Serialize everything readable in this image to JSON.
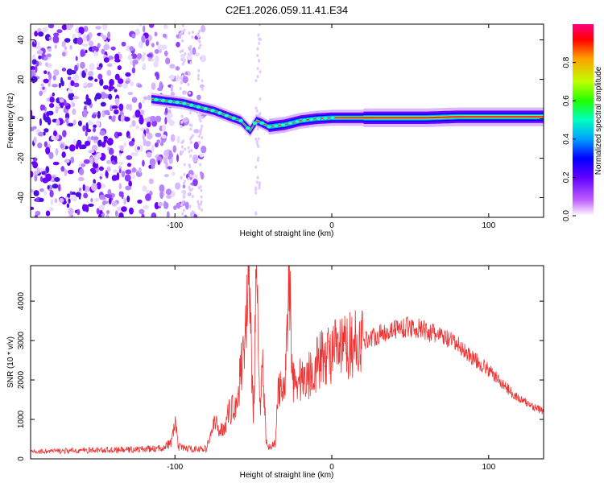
{
  "title": "C2E1.2026.059.11.41.E34",
  "chart_data": [
    {
      "type": "heatmap",
      "xlabel": "Height of straight line (km)",
      "ylabel": "Frequency (Hz)",
      "xlim": [
        -192,
        135
      ],
      "ylim": [
        -50,
        48
      ],
      "xticks": [
        -100,
        0,
        100
      ],
      "yticks": [
        -40,
        -20,
        0,
        20,
        40
      ],
      "xtick_labels": [
        "-100",
        "0",
        "100"
      ],
      "ytick_labels": [
        "-40",
        "-20",
        "0",
        "20",
        "40"
      ],
      "ridge": {
        "x": [
          -115,
          -105,
          -95,
          -85,
          -75,
          -65,
          -58,
          -52,
          -48,
          -45,
          -40,
          -30,
          -20,
          -10,
          0,
          10,
          20,
          40,
          60,
          80,
          100,
          120,
          135
        ],
        "y": [
          10,
          9,
          8,
          6,
          4,
          1,
          -1,
          -6,
          -1,
          -2,
          -4,
          -3,
          -1,
          0,
          0.5,
          0.5,
          0.5,
          0.5,
          0.5,
          1,
          1,
          1,
          1
        ]
      },
      "noise_region_x": [
        -192,
        -80
      ],
      "colorbar": {
        "label": "Normalized spectral amplitude",
        "range": [
          0,
          1
        ],
        "ticks": [
          0.0,
          0.2,
          0.4,
          0.6,
          0.8
        ],
        "tick_labels": [
          "0.0",
          "0.2",
          "0.4",
          "0.6",
          "0.8"
        ],
        "colors": [
          "#ffffff",
          "#c060ff",
          "#6000ff",
          "#0000ff",
          "#00a0ff",
          "#00ffc0",
          "#20ff00",
          "#c0ff00",
          "#ffa000",
          "#ff0000",
          "#ff0080"
        ]
      }
    },
    {
      "type": "line",
      "xlabel": "Height of straight line (km)",
      "ylabel": "SNR (10 * v/v)",
      "xlim": [
        -192,
        135
      ],
      "ylim": [
        0,
        4900
      ],
      "xticks": [
        -100,
        0,
        100
      ],
      "yticks": [
        0,
        1000,
        2000,
        3000,
        4000
      ],
      "xtick_labels": [
        "-100",
        "0",
        "100"
      ],
      "ytick_labels": [
        "0",
        "1000",
        "2000",
        "3000",
        "4000"
      ],
      "series": [
        {
          "name": "SNR",
          "color": "#ee3333",
          "x": [
            -192,
            -170,
            -150,
            -130,
            -110,
            -102,
            -100,
            -98,
            -90,
            -80,
            -75,
            -70,
            -65,
            -60,
            -55,
            -53,
            -50,
            -48,
            -46,
            -44,
            -42,
            -40,
            -36,
            -34,
            -30,
            -27,
            -25,
            -20,
            -15,
            -10,
            -5,
            0,
            5,
            10,
            20,
            30,
            40,
            50,
            60,
            70,
            80,
            90,
            100,
            110,
            120,
            130,
            135
          ],
          "y": [
            180,
            200,
            220,
            230,
            260,
            400,
            1050,
            300,
            250,
            250,
            900,
            700,
            1200,
            1500,
            3400,
            4900,
            1000,
            4800,
            1200,
            2600,
            500,
            300,
            400,
            1800,
            1600,
            4800,
            2000,
            2000,
            2100,
            2400,
            2600,
            2700,
            2750,
            2850,
            3000,
            3150,
            3300,
            3350,
            3250,
            3100,
            2900,
            2550,
            2250,
            1850,
            1500,
            1300,
            1200
          ]
        }
      ]
    }
  ]
}
